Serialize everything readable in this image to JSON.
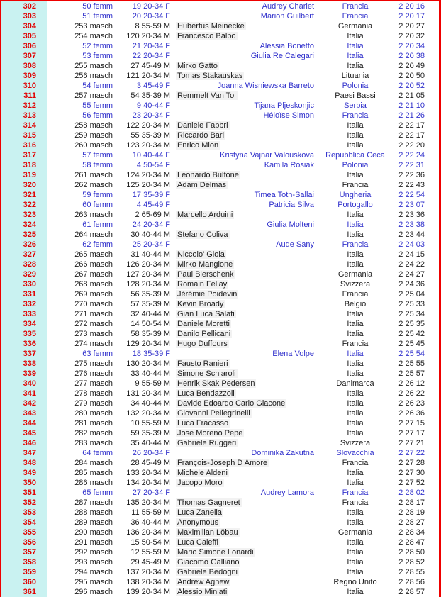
{
  "table": {
    "description_labels": {
      "female_marker": "femm",
      "male_marker": "masch"
    },
    "colors": {
      "accent_red": "#ee0000",
      "position_number_red": "#e10000",
      "position_bg_cyan": "#c9f2f1",
      "female_blue": "#3232cc",
      "male_black": "#1c1c1c"
    },
    "rows": [
      {
        "pos": "302",
        "grank": "50 femm",
        "crank": "19 20-34 F",
        "name": "Audrey Charlet",
        "country": "Francia",
        "time": "2 20 16",
        "sex": "F"
      },
      {
        "pos": "303",
        "grank": "51 femm",
        "crank": "20 20-34 F",
        "name": "Marion Guilbert",
        "country": "Francia",
        "time": "2 20 17",
        "sex": "F"
      },
      {
        "pos": "304",
        "grank": "253 masch",
        "crank": "8 55-59 M",
        "name": "Hubertus Meinecke",
        "country": "Germania",
        "time": "2 20 27",
        "sex": "M"
      },
      {
        "pos": "305",
        "grank": "254 masch",
        "crank": "120 20-34 M",
        "name": "Francesco Balbo",
        "country": "Italia",
        "time": "2 20 32",
        "sex": "M"
      },
      {
        "pos": "306",
        "grank": "52 femm",
        "crank": "21 20-34 F",
        "name": "Alessia Bonetto",
        "country": "Italia",
        "time": "2 20 34",
        "sex": "F"
      },
      {
        "pos": "307",
        "grank": "53 femm",
        "crank": "22 20-34 F",
        "name": "Giulia Re Calegari",
        "country": "Italia",
        "time": "2 20 38",
        "sex": "F"
      },
      {
        "pos": "308",
        "grank": "255 masch",
        "crank": "27 45-49 M",
        "name": "Mirko Gatto",
        "country": "Italia",
        "time": "2 20 49",
        "sex": "M"
      },
      {
        "pos": "309",
        "grank": "256 masch",
        "crank": "121 20-34 M",
        "name": "Tomas Stakauskas",
        "country": "Lituania",
        "time": "2 20 50",
        "sex": "M"
      },
      {
        "pos": "310",
        "grank": "54 femm",
        "crank": "3 45-49 F",
        "name": "Joanna Wisniewska Barreto",
        "country": "Polonia",
        "time": "2 20 52",
        "sex": "F"
      },
      {
        "pos": "311",
        "grank": "257 masch",
        "crank": "54 35-39 M",
        "name": "Remmelt Van Tol",
        "country": "Paesi Bassi",
        "time": "2 21 05",
        "sex": "M"
      },
      {
        "pos": "312",
        "grank": "55 femm",
        "crank": "9 40-44 F",
        "name": "Tijana Pljeskonjic",
        "country": "Serbia",
        "time": "2 21 10",
        "sex": "F"
      },
      {
        "pos": "313",
        "grank": "56 femm",
        "crank": "23 20-34 F",
        "name": "Héloïse Simon",
        "country": "Francia",
        "time": "2 21 26",
        "sex": "F"
      },
      {
        "pos": "314",
        "grank": "258 masch",
        "crank": "122 20-34 M",
        "name": "Daniele Fabbri",
        "country": "Italia",
        "time": "2 22 17",
        "sex": "M"
      },
      {
        "pos": "315",
        "grank": "259 masch",
        "crank": "55 35-39 M",
        "name": "Riccardo Bari",
        "country": "Italia",
        "time": "2 22 17",
        "sex": "M"
      },
      {
        "pos": "316",
        "grank": "260 masch",
        "crank": "123 20-34 M",
        "name": "Enrico Mion",
        "country": "Italia",
        "time": "2 22 20",
        "sex": "M"
      },
      {
        "pos": "317",
        "grank": "57 femm",
        "crank": "10 40-44 F",
        "name": "Kristyna Vajnar Valouskova",
        "country": "Repubblica Ceca",
        "time": "2 22 24",
        "sex": "F"
      },
      {
        "pos": "318",
        "grank": "58 femm",
        "crank": "4 50-54 F",
        "name": "Kamila Rosiak",
        "country": "Polonia",
        "time": "2 22 31",
        "sex": "F"
      },
      {
        "pos": "319",
        "grank": "261 masch",
        "crank": "124 20-34 M",
        "name": "Leonardo Bulfone",
        "country": "Italia",
        "time": "2 22 36",
        "sex": "M"
      },
      {
        "pos": "320",
        "grank": "262 masch",
        "crank": "125 20-34 M",
        "name": "Adam Delmas",
        "country": "Francia",
        "time": "2 22 43",
        "sex": "M"
      },
      {
        "pos": "321",
        "grank": "59 femm",
        "crank": "17 35-39 F",
        "name": "Timea Toth-Sallai",
        "country": "Ungheria",
        "time": "2 22 54",
        "sex": "F"
      },
      {
        "pos": "322",
        "grank": "60 femm",
        "crank": "4 45-49 F",
        "name": "Patricia Silva",
        "country": "Portogallo",
        "time": "2 23 07",
        "sex": "F"
      },
      {
        "pos": "323",
        "grank": "263 masch",
        "crank": "2 65-69 M",
        "name": "Marcello Arduini",
        "country": "Italia",
        "time": "2 23 36",
        "sex": "M"
      },
      {
        "pos": "324",
        "grank": "61 femm",
        "crank": "24 20-34 F",
        "name": "Giulia Molteni",
        "country": "Italia",
        "time": "2 23 38",
        "sex": "F"
      },
      {
        "pos": "325",
        "grank": "264 masch",
        "crank": "30 40-44 M",
        "name": "Stefano Coliva",
        "country": "Italia",
        "time": "2 23 44",
        "sex": "M"
      },
      {
        "pos": "326",
        "grank": "62 femm",
        "crank": "25 20-34 F",
        "name": "Aude Sany",
        "country": "Francia",
        "time": "2 24 03",
        "sex": "F"
      },
      {
        "pos": "327",
        "grank": "265 masch",
        "crank": "31 40-44 M",
        "name": "Niccolo' Gioia",
        "country": "Italia",
        "time": "2 24 15",
        "sex": "M"
      },
      {
        "pos": "328",
        "grank": "266 masch",
        "crank": "126 20-34 M",
        "name": "Mirko Mangione",
        "country": "Italia",
        "time": "2 24 22",
        "sex": "M"
      },
      {
        "pos": "329",
        "grank": "267 masch",
        "crank": "127 20-34 M",
        "name": "Paul Bierschenk",
        "country": "Germania",
        "time": "2 24 27",
        "sex": "M"
      },
      {
        "pos": "330",
        "grank": "268 masch",
        "crank": "128 20-34 M",
        "name": "Romain Fellay",
        "country": "Svizzera",
        "time": "2 24 36",
        "sex": "M"
      },
      {
        "pos": "331",
        "grank": "269 masch",
        "crank": "56 35-39 M",
        "name": "Jérémie Poidevin",
        "country": "Francia",
        "time": "2 25 04",
        "sex": "M"
      },
      {
        "pos": "332",
        "grank": "270 masch",
        "crank": "57 35-39 M",
        "name": "Kevin Broady",
        "country": "Belgio",
        "time": "2 25 33",
        "sex": "M"
      },
      {
        "pos": "333",
        "grank": "271 masch",
        "crank": "32 40-44 M",
        "name": "Gian Luca Salati",
        "country": "Italia",
        "time": "2 25 34",
        "sex": "M"
      },
      {
        "pos": "334",
        "grank": "272 masch",
        "crank": "14 50-54 M",
        "name": "Daniele Moretti",
        "country": "Italia",
        "time": "2 25 35",
        "sex": "M"
      },
      {
        "pos": "335",
        "grank": "273 masch",
        "crank": "58 35-39 M",
        "name": "Danilo Pellicani",
        "country": "Italia",
        "time": "2 25 42",
        "sex": "M"
      },
      {
        "pos": "336",
        "grank": "274 masch",
        "crank": "129 20-34 M",
        "name": "Hugo Duffours",
        "country": "Francia",
        "time": "2 25 45",
        "sex": "M"
      },
      {
        "pos": "337",
        "grank": "63 femm",
        "crank": "18 35-39 F",
        "name": "Elena Volpe",
        "country": "Italia",
        "time": "2 25 54",
        "sex": "F"
      },
      {
        "pos": "338",
        "grank": "275 masch",
        "crank": "130 20-34 M",
        "name": "Fausto Ranieri",
        "country": "Italia",
        "time": "2 25 55",
        "sex": "M"
      },
      {
        "pos": "339",
        "grank": "276 masch",
        "crank": "33 40-44 M",
        "name": "Simone Schiaroli",
        "country": "Italia",
        "time": "2 25 57",
        "sex": "M"
      },
      {
        "pos": "340",
        "grank": "277 masch",
        "crank": "9 55-59 M",
        "name": "Henrik Skak Pedersen",
        "country": "Danimarca",
        "time": "2 26 12",
        "sex": "M"
      },
      {
        "pos": "341",
        "grank": "278 masch",
        "crank": "131 20-34 M",
        "name": "Luca Bendazzoli",
        "country": "Italia",
        "time": "2 26 22",
        "sex": "M"
      },
      {
        "pos": "342",
        "grank": "279 masch",
        "crank": "34 40-44 M",
        "name": "Davide Edoardo Carlo Giacone",
        "country": "Italia",
        "time": "2 26 23",
        "sex": "M"
      },
      {
        "pos": "343",
        "grank": "280 masch",
        "crank": "132 20-34 M",
        "name": "Giovanni Pellegrinelli",
        "country": "Italia",
        "time": "2 26 36",
        "sex": "M"
      },
      {
        "pos": "344",
        "grank": "281 masch",
        "crank": "10 55-59 M",
        "name": "Luca Fracasso",
        "country": "Italia",
        "time": "2 27 15",
        "sex": "M"
      },
      {
        "pos": "345",
        "grank": "282 masch",
        "crank": "59 35-39 M",
        "name": "Jose Moreno Pepe",
        "country": "Italia",
        "time": "2 27 17",
        "sex": "M"
      },
      {
        "pos": "346",
        "grank": "283 masch",
        "crank": "35 40-44 M",
        "name": "Gabriele Ruggeri",
        "country": "Svizzera",
        "time": "2 27 21",
        "sex": "M"
      },
      {
        "pos": "347",
        "grank": "64 femm",
        "crank": "26 20-34 F",
        "name": "Dominika Zakutna",
        "country": "Slovacchia",
        "time": "2 27 22",
        "sex": "F"
      },
      {
        "pos": "348",
        "grank": "284 masch",
        "crank": "28 45-49 M",
        "name": "François-Joseph D Amore",
        "country": "Francia",
        "time": "2 27 28",
        "sex": "M"
      },
      {
        "pos": "349",
        "grank": "285 masch",
        "crank": "133 20-34 M",
        "name": "Michele Aldeni",
        "country": "Italia",
        "time": "2 27 30",
        "sex": "M"
      },
      {
        "pos": "350",
        "grank": "286 masch",
        "crank": "134 20-34 M",
        "name": "Jacopo Moro",
        "country": "Italia",
        "time": "2 27 52",
        "sex": "M"
      },
      {
        "pos": "351",
        "grank": "65 femm",
        "crank": "27 20-34 F",
        "name": "Audrey Lamora",
        "country": "Francia",
        "time": "2 28 02",
        "sex": "F"
      },
      {
        "pos": "352",
        "grank": "287 masch",
        "crank": "135 20-34 M",
        "name": "Thomas Gagneret",
        "country": "Francia",
        "time": "2 28 17",
        "sex": "M"
      },
      {
        "pos": "353",
        "grank": "288 masch",
        "crank": "11 55-59 M",
        "name": "Luca Zanella",
        "country": "Italia",
        "time": "2 28 19",
        "sex": "M"
      },
      {
        "pos": "354",
        "grank": "289 masch",
        "crank": "36 40-44 M",
        "name": "Anonymous",
        "country": "Italia",
        "time": "2 28 27",
        "sex": "M"
      },
      {
        "pos": "355",
        "grank": "290 masch",
        "crank": "136 20-34 M",
        "name": "Maximilian Löbau",
        "country": "Germania",
        "time": "2 28 34",
        "sex": "M"
      },
      {
        "pos": "356",
        "grank": "291 masch",
        "crank": "15 50-54 M",
        "name": "Luca Caleffi",
        "country": "Italia",
        "time": "2 28 47",
        "sex": "M"
      },
      {
        "pos": "357",
        "grank": "292 masch",
        "crank": "12 55-59 M",
        "name": "Mario Simone Lonardi",
        "country": "Italia",
        "time": "2 28 50",
        "sex": "M"
      },
      {
        "pos": "358",
        "grank": "293 masch",
        "crank": "29 45-49 M",
        "name": "Giacomo Galliano",
        "country": "Italia",
        "time": "2 28 52",
        "sex": "M"
      },
      {
        "pos": "359",
        "grank": "294 masch",
        "crank": "137 20-34 M",
        "name": "Gabriele Bedogni",
        "country": "Italia",
        "time": "2 28 55",
        "sex": "M"
      },
      {
        "pos": "360",
        "grank": "295 masch",
        "crank": "138 20-34 M",
        "name": "Andrew Agnew",
        "country": "Regno Unito",
        "time": "2 28 56",
        "sex": "M"
      },
      {
        "pos": "361",
        "grank": "296 masch",
        "crank": "139 20-34 M",
        "name": "Alessio Miniati",
        "country": "Italia",
        "time": "2 28 57",
        "sex": "M"
      }
    ]
  }
}
